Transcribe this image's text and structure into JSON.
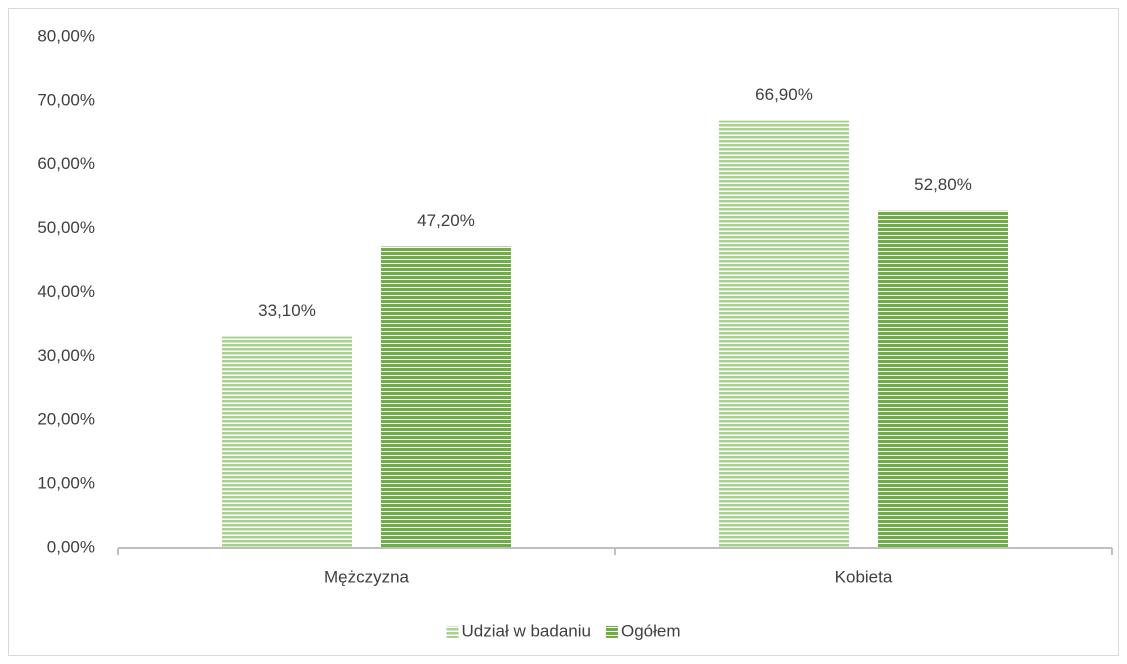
{
  "chart_data": {
    "type": "bar",
    "categories": [
      "Mężczyzna",
      "Kobieta"
    ],
    "series": [
      {
        "name": "Udział w badaniu",
        "color": "#a9d18e",
        "values": [
          33.1,
          66.9
        ],
        "value_labels": [
          "33,10%",
          "66,90%"
        ]
      },
      {
        "name": "Ogółem",
        "color": "#70ad47",
        "values": [
          47.2,
          52.8
        ],
        "value_labels": [
          "47,20%",
          "52,80%"
        ]
      }
    ],
    "ylim": [
      0,
      80
    ],
    "yticks": [
      {
        "value": 0,
        "label": "0,00%"
      },
      {
        "value": 10,
        "label": "10,00%"
      },
      {
        "value": 20,
        "label": "20,00%"
      },
      {
        "value": 30,
        "label": "30,00%"
      },
      {
        "value": 40,
        "label": "40,00%"
      },
      {
        "value": 50,
        "label": "50,00%"
      },
      {
        "value": 60,
        "label": "60,00%"
      },
      {
        "value": 70,
        "label": "70,00%"
      },
      {
        "value": 80,
        "label": "80,00%"
      }
    ],
    "grid": false,
    "legend": "bottom"
  }
}
